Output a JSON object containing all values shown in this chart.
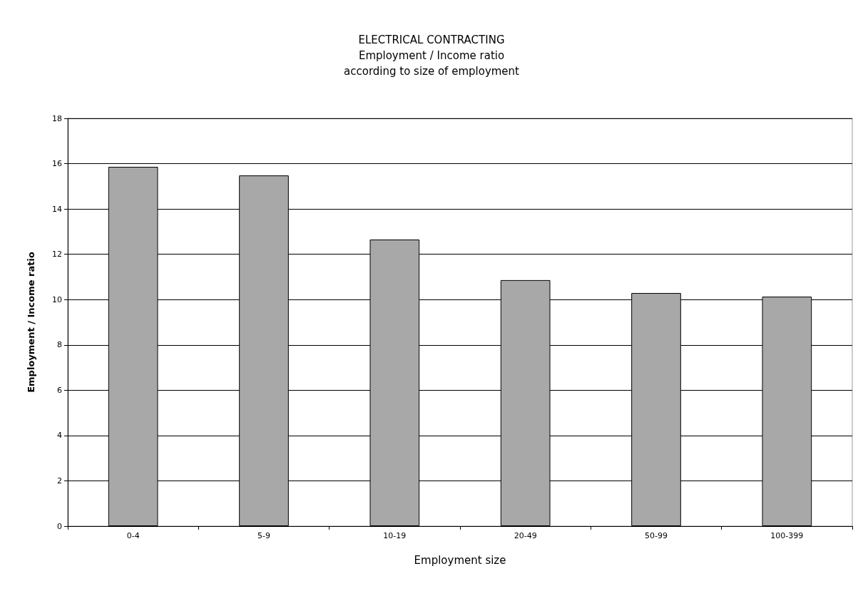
{
  "chart_data": {
    "type": "bar",
    "title": "ELECTRICAL CONTRACTING\nEmployment / Income ratio\naccording to size of employment",
    "xlabel": "Employment size",
    "ylabel": "Employment / Income ratio",
    "categories": [
      "0-4",
      "5-9",
      "10-19",
      "20-49",
      "50-99",
      "100-399"
    ],
    "values": [
      15.86,
      15.48,
      12.65,
      10.86,
      10.29,
      10.13
    ],
    "color": "#a8a8a8",
    "ylim": [
      0,
      18
    ],
    "yticks": [
      0,
      2,
      4,
      6,
      8,
      10,
      12,
      14,
      16,
      18
    ],
    "grid": true
  }
}
